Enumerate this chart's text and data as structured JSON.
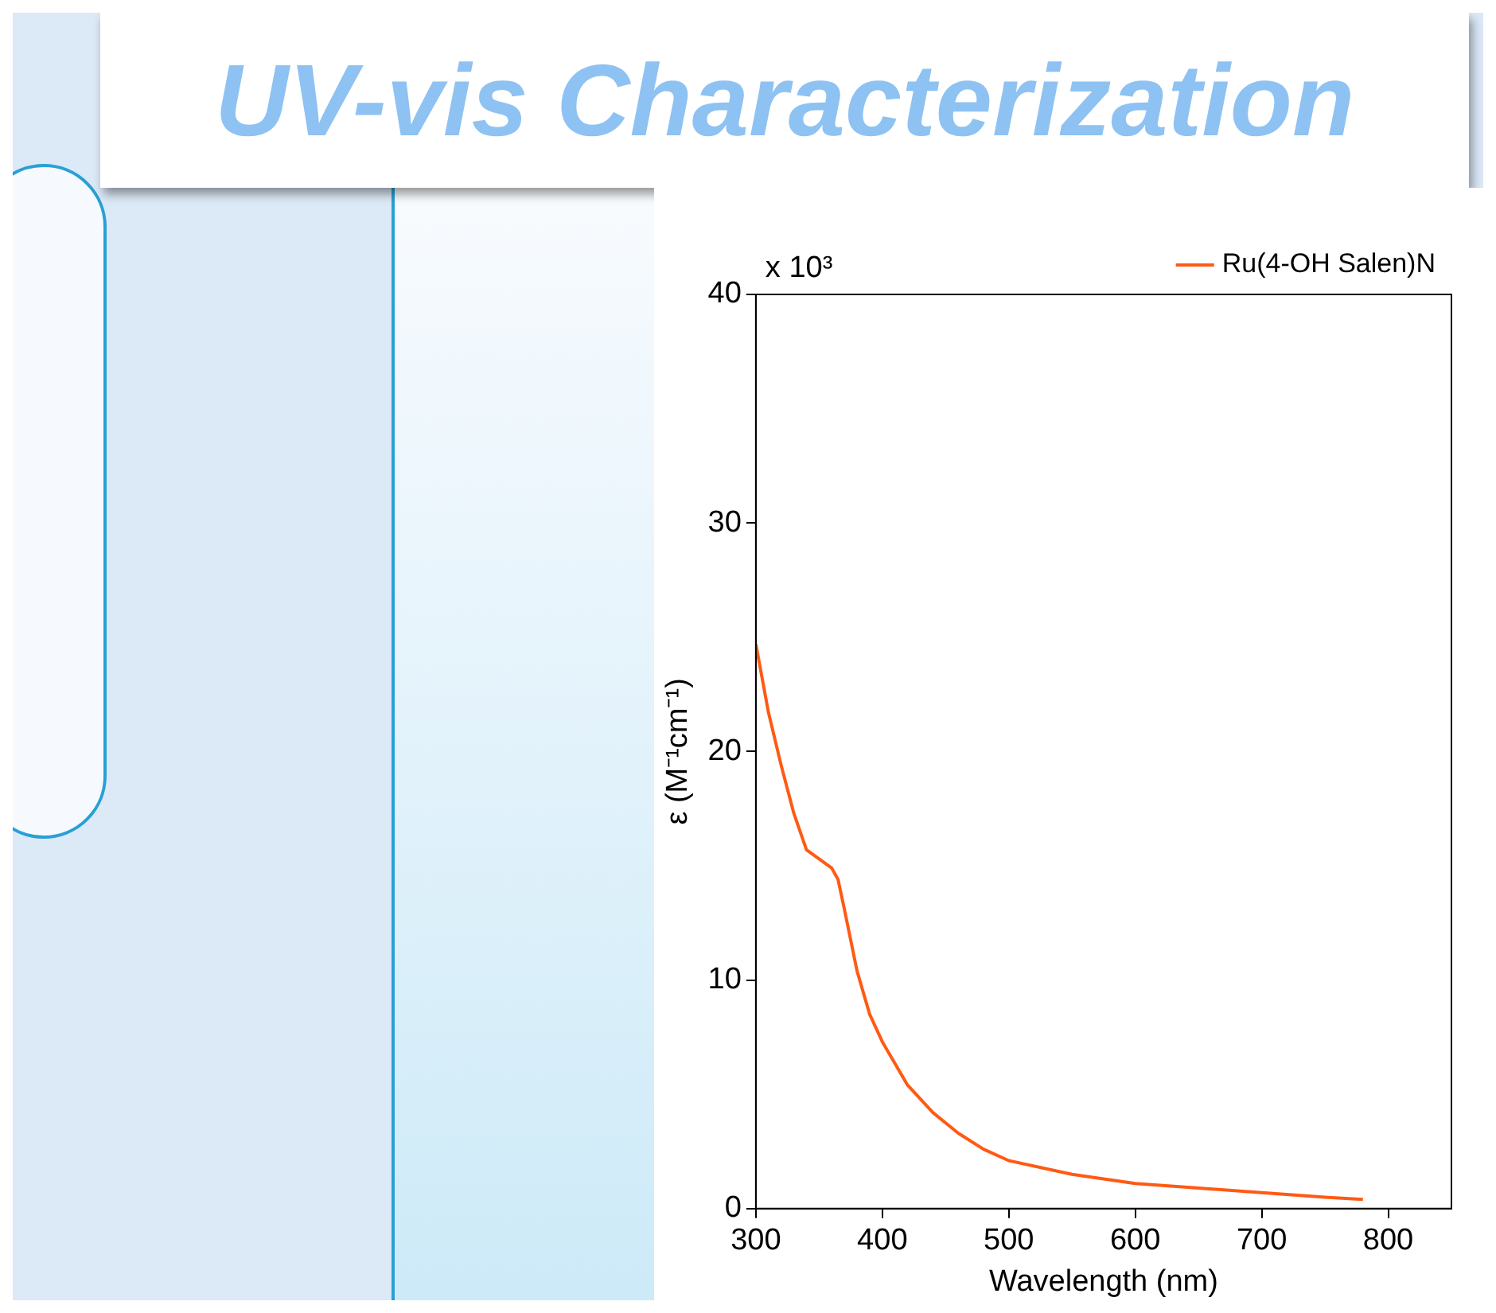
{
  "chart_data": {
    "type": "line",
    "title": "UV-vis Characterization",
    "xlabel": "Wavelength (nm)",
    "ylabel": "ε (M⁻¹cm⁻¹)",
    "x": [
      300,
      310,
      320,
      330,
      340,
      350,
      360,
      365,
      370,
      380,
      390,
      400,
      420,
      440,
      460,
      480,
      500,
      550,
      600,
      650,
      700,
      750,
      780
    ],
    "series": [
      {
        "name": "Ru(4-OH Salen)N",
        "color": "#ff5a14",
        "values": [
          24.7,
          21.7,
          19.4,
          17.3,
          15.7,
          15.3,
          14.9,
          14.4,
          13.1,
          10.4,
          8.5,
          7.3,
          5.4,
          4.2,
          3.3,
          2.6,
          2.1,
          1.5,
          1.1,
          0.9,
          0.7,
          0.5,
          0.4
        ]
      }
    ],
    "xlim": [
      300,
      850
    ],
    "xticks": [
      300,
      400,
      500,
      600,
      700,
      800
    ],
    "ylim": [
      0,
      40
    ],
    "yticks": [
      0,
      10,
      20,
      30,
      40
    ],
    "annotations": [
      "x 10³"
    ],
    "grid": false,
    "legend": "top right",
    "marker": "none",
    "line_style": "solid"
  }
}
